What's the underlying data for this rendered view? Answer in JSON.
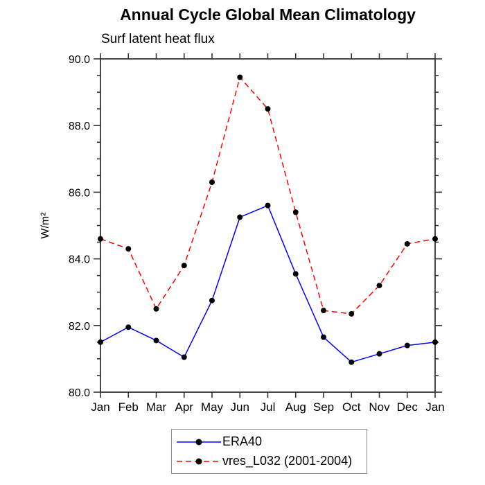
{
  "chart_data": {
    "type": "line",
    "title": "Annual Cycle Global Mean Climatology",
    "subtitle": "Surf latent heat flux",
    "ylabel": "W/m²",
    "xlabel": "",
    "categories": [
      "Jan",
      "Feb",
      "Mar",
      "Apr",
      "May",
      "Jun",
      "Jul",
      "Aug",
      "Sep",
      "Oct",
      "Nov",
      "Dec",
      "Jan"
    ],
    "ylim": [
      80.0,
      90.0
    ],
    "yticks_major": [
      80.0,
      82.0,
      84.0,
      86.0,
      88.0,
      90.0
    ],
    "ytick_labels": [
      "80.0",
      "82.0",
      "84.0",
      "86.0",
      "88.0",
      "90.0"
    ],
    "ytick_minor_step": 0.5,
    "grid": false,
    "frame_ticks": "all-sides-outward",
    "legend_position": "bottom-center-boxed",
    "axis_color": "#333333",
    "marker_shape": "filled-circle",
    "series": [
      {
        "name": "ERA40",
        "color": "#0000ff",
        "line_style": "solid",
        "marker_color": "#000000",
        "values": [
          81.5,
          81.95,
          81.55,
          81.05,
          82.75,
          85.25,
          85.6,
          83.55,
          81.65,
          80.9,
          81.15,
          81.4,
          81.5
        ]
      },
      {
        "name": "vres_L032 (2001-2004)",
        "color": "#ff0000",
        "line_style": "dashed",
        "marker_color": "#000000",
        "values": [
          84.6,
          84.3,
          82.5,
          83.8,
          86.3,
          89.45,
          88.5,
          85.4,
          82.45,
          82.35,
          83.2,
          84.45,
          84.6
        ]
      }
    ]
  }
}
